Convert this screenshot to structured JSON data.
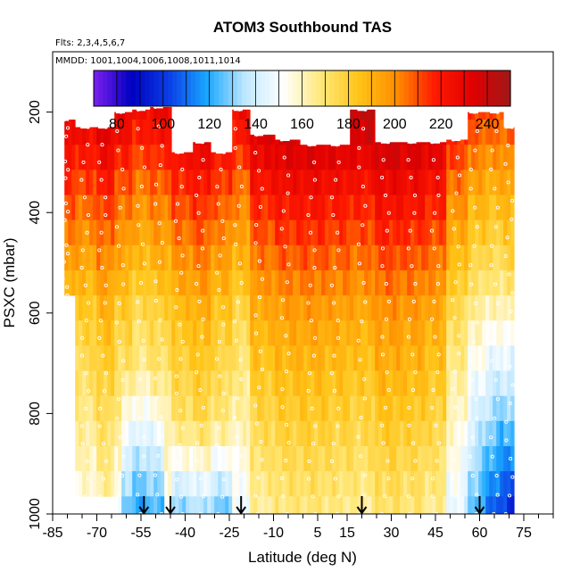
{
  "chart_data": {
    "type": "heatmap",
    "title": "ATOM3 Southbound TAS",
    "flights_note": "Flts: 2,3,4,5,6,7",
    "dates_note": "MMDD: 1001,1004,1006,1008,1011,1014",
    "xlabel": "Latitude (deg N)",
    "ylabel": "PSXC (mbar)",
    "xlim": [
      -85,
      85
    ],
    "ylim": [
      1000,
      80
    ],
    "x_ticks": [
      "-85",
      "-70",
      "-55",
      "-40",
      "-25",
      "-10",
      "5",
      "15",
      "30",
      "45",
      "60",
      "75"
    ],
    "x_tick_values": [
      -85,
      -70,
      -55,
      -40,
      -25,
      -10,
      5,
      15,
      30,
      45,
      60,
      75
    ],
    "y_ticks": [
      "200",
      "400",
      "600",
      "800",
      "1000"
    ],
    "y_tick_values": [
      200,
      400,
      600,
      800,
      1000
    ],
    "colorbar": {
      "ticks": [
        "80",
        "100",
        "120",
        "140",
        "160",
        "180",
        "200",
        "220",
        "240"
      ],
      "tick_values": [
        80,
        100,
        120,
        140,
        160,
        180,
        200,
        220,
        240
      ],
      "range": [
        70,
        250
      ],
      "colors": [
        "#7d20ef",
        "#0000c0",
        "#0b3fe6",
        "#1aa8ff",
        "#bfe8ff",
        "#ffffff",
        "#ffe87a",
        "#ffc417",
        "#ff8c00",
        "#ff1a00",
        "#e00000",
        "#a01818"
      ]
    },
    "x_data_min": -81,
    "x_data_max": 71,
    "pressure_levels": [
      165,
      215,
      265,
      315,
      365,
      415,
      465,
      515,
      565,
      615,
      665,
      715,
      765,
      815,
      865,
      915,
      965,
      1005
    ],
    "profiles": [
      {
        "lat": -81,
        "top": 215,
        "bottom": 565,
        "offset": -2
      },
      {
        "lat": -74,
        "top": 230,
        "bottom": 965,
        "offset": -5
      },
      {
        "lat": -68,
        "top": 230,
        "bottom": 965,
        "offset": 2
      },
      {
        "lat": -62,
        "top": 200,
        "bottom": 1000,
        "offset": -6
      },
      {
        "lat": -55,
        "top": 195,
        "bottom": 1000,
        "offset": -12
      },
      {
        "lat": -49,
        "top": 190,
        "bottom": 1000,
        "offset": -8
      },
      {
        "lat": -42,
        "top": 280,
        "bottom": 1000,
        "offset": 0
      },
      {
        "lat": -35,
        "top": 260,
        "bottom": 1000,
        "offset": 4
      },
      {
        "lat": -28,
        "top": 280,
        "bottom": 1000,
        "offset": -3
      },
      {
        "lat": -22,
        "top": 195,
        "bottom": 1000,
        "offset": -10
      },
      {
        "lat": -15,
        "top": 245,
        "bottom": 1000,
        "offset": 5
      },
      {
        "lat": -6,
        "top": 255,
        "bottom": 1000,
        "offset": 9
      },
      {
        "lat": 3,
        "top": 265,
        "bottom": 1000,
        "offset": 10
      },
      {
        "lat": 11,
        "top": 265,
        "bottom": 1000,
        "offset": 8
      },
      {
        "lat": 20,
        "top": 195,
        "bottom": 1000,
        "offset": 6
      },
      {
        "lat": 28,
        "top": 260,
        "bottom": 1000,
        "offset": 12
      },
      {
        "lat": 37,
        "top": 260,
        "bottom": 1000,
        "offset": 10
      },
      {
        "lat": 45,
        "top": 260,
        "bottom": 1000,
        "offset": 6
      },
      {
        "lat": 52,
        "top": 255,
        "bottom": 1000,
        "offset": -12
      },
      {
        "lat": 58,
        "top": 200,
        "bottom": 1000,
        "offset": -22
      },
      {
        "lat": 65,
        "top": 200,
        "bottom": 1000,
        "offset": -25
      },
      {
        "lat": 70,
        "top": 230,
        "bottom": 1000,
        "offset": -22
      }
    ],
    "arrows_lat": [
      -54,
      -45,
      -21,
      20,
      60
    ]
  }
}
